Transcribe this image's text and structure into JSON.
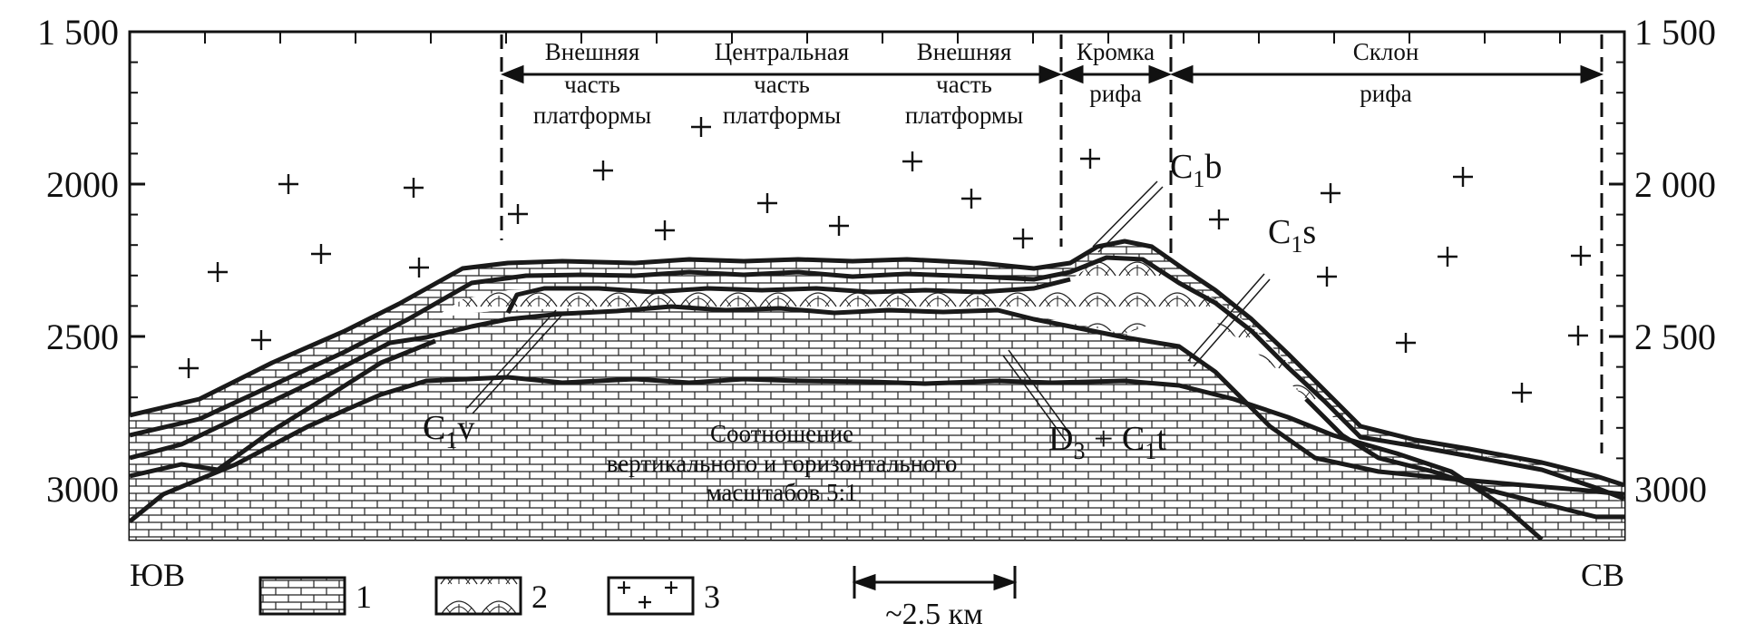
{
  "depth_axis": {
    "left_ticks": [
      {
        "value": 1500,
        "label": "1 500"
      },
      {
        "value": 2000,
        "label": "2000"
      },
      {
        "value": 2500,
        "label": "2500"
      },
      {
        "value": 3000,
        "label": "3000"
      }
    ],
    "right_ticks": [
      {
        "value": 1500,
        "label": "1 500"
      },
      {
        "value": 2000,
        "label": "2 000"
      },
      {
        "value": 2500,
        "label": "2 500"
      },
      {
        "value": 3000,
        "label": "3000"
      }
    ]
  },
  "zones": [
    {
      "lines": [
        "Внешняя",
        "часть",
        "платформы"
      ]
    },
    {
      "lines": [
        "Центральная",
        "часть",
        "платформы"
      ]
    },
    {
      "lines": [
        "Внешняя",
        "часть",
        "платформы"
      ]
    },
    {
      "lines": [
        "Кромка",
        "рифа"
      ]
    },
    {
      "lines": [
        "Склон",
        "рифа"
      ]
    }
  ],
  "units": {
    "c1b": {
      "main": "C",
      "sub": "1",
      "suffix": "b"
    },
    "c1s": {
      "main": "C",
      "sub": "1",
      "suffix": "s"
    },
    "c1v": {
      "main": "C",
      "sub": "1",
      "suffix": "v"
    },
    "d3c1t": {
      "main": "D",
      "sub": "3",
      "mid": " + C",
      "sub2": "1",
      "suffix": "t"
    }
  },
  "note": {
    "lines": [
      "Соотношение",
      "вертикального и горизонтального",
      "масштабов 5:1"
    ]
  },
  "directions": {
    "left": "ЮВ",
    "right": "СВ"
  },
  "legend": [
    {
      "label": "1",
      "pattern": "brick-limestone"
    },
    {
      "label": "2",
      "pattern": "reef-arcs"
    },
    {
      "label": "3",
      "pattern": "plus-signs"
    }
  ],
  "scale_bar": {
    "label": "~2.5 км"
  }
}
